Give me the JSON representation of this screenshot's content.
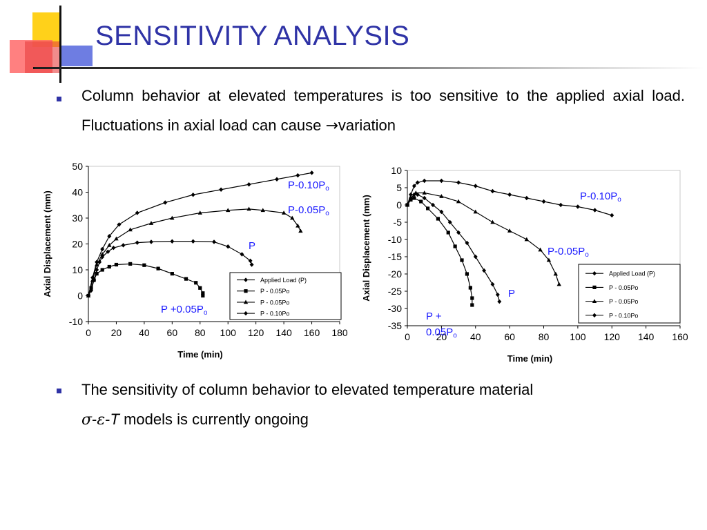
{
  "slide": {
    "title": "SENSITIVITY ANALYSIS",
    "bullet1": {
      "text": "Column behavior at elevated temperatures is too sensitive to the applied axial load. Fluctuations in axial load can cause ",
      "arrow": "→",
      "tail": "variation"
    },
    "bullet2": {
      "text_a": "The sensitivity of column behavior to elevated temperature material",
      "sym_sigma": "σ",
      "dash1": "-",
      "sym_eps": "ε",
      "dash2": "-",
      "sym_T": "T",
      "text_b": " models is currently ongoing"
    }
  },
  "colors": {
    "title": "#2f33a6",
    "bullet": "#2f33a6",
    "annotation": "#1a1aff",
    "series": "#000000"
  },
  "chart_data": [
    {
      "type": "line",
      "xlabel": "Time (min)",
      "ylabel": "Axial Displacement (mm)",
      "xlim": [
        0,
        180
      ],
      "ylim": [
        -10,
        50
      ],
      "xticks": [
        "0",
        "20",
        "40",
        "60",
        "80",
        "100",
        "120",
        "140",
        "160",
        "180"
      ],
      "yticks": [
        "50",
        "40",
        "30",
        "20",
        "10",
        "0",
        "-10"
      ],
      "legend_position": "bottom-right",
      "legend": [
        "Applied Load (P)",
        "P - 0.05Po",
        "P - 0.05Po",
        "P - 0.10Po"
      ],
      "series": [
        {
          "name": "Applied Load (P)",
          "marker": "diamond",
          "points": [
            [
              0,
              0
            ],
            [
              2,
              2
            ],
            [
              4,
              6
            ],
            [
              6,
              10
            ],
            [
              8,
              13
            ],
            [
              10,
              15
            ],
            [
              14,
              17
            ],
            [
              18,
              18.5
            ],
            [
              25,
              19.5
            ],
            [
              35,
              20.5
            ],
            [
              45,
              20.8
            ],
            [
              60,
              21
            ],
            [
              75,
              21
            ],
            [
              90,
              20.8
            ],
            [
              100,
              19
            ],
            [
              110,
              16
            ],
            [
              116,
              13.5
            ],
            [
              117,
              12
            ]
          ]
        },
        {
          "name": "P - 0.05Po",
          "marker": "square",
          "points": [
            [
              0,
              0
            ],
            [
              2,
              3
            ],
            [
              4,
              6
            ],
            [
              6,
              8.5
            ],
            [
              10,
              10
            ],
            [
              15,
              11.2
            ],
            [
              20,
              12
            ],
            [
              30,
              12.3
            ],
            [
              40,
              11.8
            ],
            [
              50,
              10.5
            ],
            [
              60,
              8.5
            ],
            [
              70,
              6.5
            ],
            [
              77,
              5
            ],
            [
              80,
              3
            ],
            [
              82,
              1
            ],
            [
              82,
              0
            ]
          ]
        },
        {
          "name": "P - 0.05Po",
          "marker": "triangle",
          "points": [
            [
              0,
              0
            ],
            [
              3,
              6
            ],
            [
              6,
              12
            ],
            [
              10,
              16
            ],
            [
              15,
              19.5
            ],
            [
              20,
              22
            ],
            [
              30,
              25.5
            ],
            [
              45,
              28
            ],
            [
              60,
              30
            ],
            [
              80,
              32
            ],
            [
              100,
              33
            ],
            [
              115,
              33.5
            ],
            [
              125,
              33
            ],
            [
              140,
              32
            ],
            [
              146,
              30
            ],
            [
              150,
              27
            ],
            [
              152,
              25
            ]
          ]
        },
        {
          "name": "P - 0.10Po",
          "marker": "diamond",
          "points": [
            [
              0,
              0
            ],
            [
              3,
              7
            ],
            [
              6,
              13
            ],
            [
              10,
              18
            ],
            [
              15,
              23
            ],
            [
              22,
              27.5
            ],
            [
              35,
              32
            ],
            [
              55,
              36
            ],
            [
              75,
              39
            ],
            [
              95,
              41
            ],
            [
              115,
              43
            ],
            [
              135,
              45
            ],
            [
              150,
              46.5
            ],
            [
              160,
              47.5
            ]
          ]
        }
      ],
      "annotations": [
        {
          "text": "P-0.10P",
          "sub": "o"
        },
        {
          "text": "P-0.05P",
          "sub": "o"
        },
        {
          "text": "P",
          "sub": ""
        },
        {
          "text": "P +0.05P",
          "sub": "o"
        }
      ]
    },
    {
      "type": "line",
      "xlabel": "Time (min)",
      "ylabel": "Axial Displacement (mm)",
      "xlim": [
        0,
        160
      ],
      "ylim": [
        -35,
        10
      ],
      "xticks": [
        "0",
        "20",
        "40",
        "60",
        "80",
        "100",
        "120",
        "140",
        "160"
      ],
      "yticks": [
        "10",
        "5",
        "0",
        "-5",
        "-10",
        "-15",
        "-20",
        "-25",
        "-30",
        "-35"
      ],
      "legend_position": "bottom-right",
      "legend": [
        "Applied Load (P)",
        "P - 0.05Po",
        "P - 0.05Po",
        "P - 0.10Po"
      ],
      "series": [
        {
          "name": "Applied Load (P)",
          "marker": "diamond",
          "points": [
            [
              0,
              0
            ],
            [
              2,
              2
            ],
            [
              4,
              3
            ],
            [
              6,
              3
            ],
            [
              10,
              2
            ],
            [
              15,
              0
            ],
            [
              20,
              -2
            ],
            [
              25,
              -5
            ],
            [
              30,
              -8
            ],
            [
              35,
              -11
            ],
            [
              40,
              -15
            ],
            [
              45,
              -19
            ],
            [
              50,
              -23
            ],
            [
              53,
              -26
            ],
            [
              54,
              -28
            ]
          ]
        },
        {
          "name": "P - 0.05Po",
          "marker": "square",
          "points": [
            [
              0,
              0
            ],
            [
              2,
              1.5
            ],
            [
              4,
              2
            ],
            [
              8,
              1
            ],
            [
              12,
              -1
            ],
            [
              18,
              -4
            ],
            [
              24,
              -8
            ],
            [
              28,
              -12
            ],
            [
              32,
              -16
            ],
            [
              35,
              -20
            ],
            [
              37,
              -24
            ],
            [
              38,
              -27
            ],
            [
              38,
              -29
            ]
          ]
        },
        {
          "name": "P - 0.05Po",
          "marker": "triangle",
          "points": [
            [
              0,
              0
            ],
            [
              2,
              2
            ],
            [
              5,
              3.5
            ],
            [
              10,
              3.5
            ],
            [
              20,
              2.5
            ],
            [
              30,
              1
            ],
            [
              40,
              -2
            ],
            [
              50,
              -5
            ],
            [
              60,
              -7.5
            ],
            [
              70,
              -10
            ],
            [
              78,
              -13
            ],
            [
              83,
              -16
            ],
            [
              87,
              -20
            ],
            [
              89,
              -23
            ]
          ]
        },
        {
          "name": "P - 0.10Po",
          "marker": "diamond",
          "points": [
            [
              0,
              0
            ],
            [
              2,
              3
            ],
            [
              4,
              5.5
            ],
            [
              6,
              6.5
            ],
            [
              10,
              7
            ],
            [
              20,
              7
            ],
            [
              30,
              6.5
            ],
            [
              40,
              5.5
            ],
            [
              50,
              4
            ],
            [
              60,
              3
            ],
            [
              70,
              2
            ],
            [
              80,
              1
            ],
            [
              90,
              0
            ],
            [
              100,
              -0.5
            ],
            [
              110,
              -1.5
            ],
            [
              120,
              -3
            ]
          ]
        }
      ],
      "annotations": [
        {
          "text": "P-0.10P",
          "sub": "o"
        },
        {
          "text": "P-0.05P",
          "sub": "o"
        },
        {
          "text": "P",
          "sub": ""
        },
        {
          "text": "P +",
          "sub": ""
        },
        {
          "text": "0.05P",
          "sub": "o"
        }
      ]
    }
  ]
}
